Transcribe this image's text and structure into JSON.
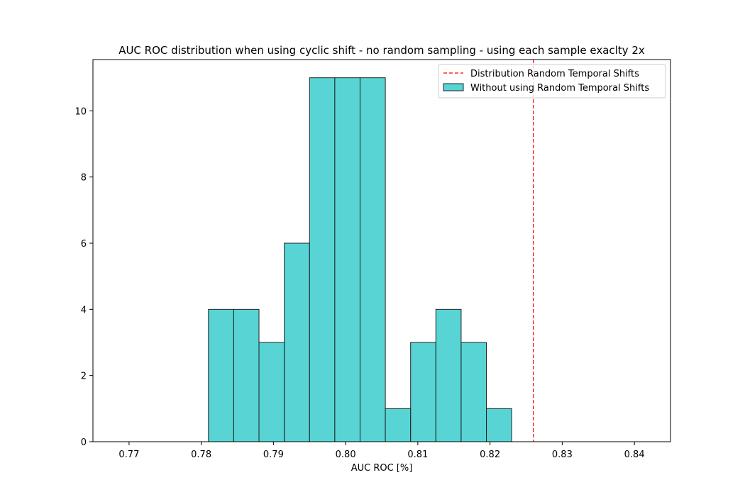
{
  "chart_data": {
    "type": "bar",
    "title": "AUC ROC distribution when using cyclic shift - no random sampling - using each sample exaclty 2x",
    "xlabel": "AUC ROC [%]",
    "ylabel": "",
    "xlim": [
      0.765,
      0.845
    ],
    "ylim": [
      0,
      11.55
    ],
    "xticks": [
      0.77,
      0.78,
      0.79,
      0.8,
      0.81,
      0.82,
      0.83,
      0.84
    ],
    "xtick_labels": [
      "0.77",
      "0.78",
      "0.79",
      "0.80",
      "0.81",
      "0.82",
      "0.83",
      "0.84"
    ],
    "yticks": [
      0,
      2,
      4,
      6,
      8,
      10
    ],
    "ytick_labels": [
      "0",
      "2",
      "4",
      "6",
      "8",
      "10"
    ],
    "grid": false,
    "legend_position": "top-right",
    "bins": [
      [
        0.781,
        0.7845
      ],
      [
        0.7845,
        0.788
      ],
      [
        0.788,
        0.7915
      ],
      [
        0.7915,
        0.795
      ],
      [
        0.795,
        0.7985
      ],
      [
        0.7985,
        0.802
      ],
      [
        0.802,
        0.8055
      ],
      [
        0.8055,
        0.809
      ],
      [
        0.809,
        0.8125
      ],
      [
        0.8125,
        0.816
      ],
      [
        0.816,
        0.8195
      ],
      [
        0.8195,
        0.823
      ]
    ],
    "counts": [
      4,
      4,
      3,
      6,
      11,
      11,
      11,
      1,
      3,
      4,
      3,
      1
    ],
    "series": [
      {
        "name": "Without using Random Temporal Shifts",
        "type": "histogram",
        "color": "#17c3c3",
        "edgecolor": "#222222"
      },
      {
        "name": "Distribution Random Temporal Shifts",
        "type": "vline",
        "x": 0.826,
        "color": "#ff0000"
      }
    ]
  }
}
